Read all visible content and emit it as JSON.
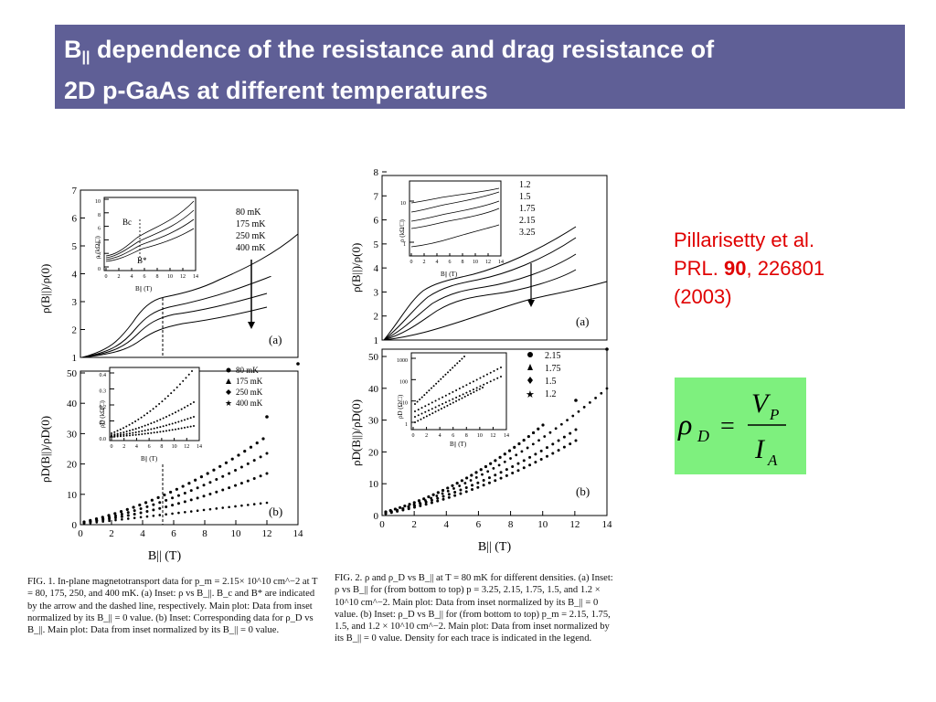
{
  "slide": {
    "title_line1_prefix": "B",
    "title_sub": "||",
    "title_line1_rest": " dependence of the resistance and drag resistance of",
    "title_line2": "2D p-GaAs at different temperatures"
  },
  "citation": {
    "authors": "Pillarisetty et al.",
    "journal": "PRL.",
    "volume": "90",
    "rest": ", 226801",
    "year": "(2003)"
  },
  "equation": {
    "lhs": "ρ",
    "lhs_sub": "D",
    "eq": "=",
    "num": "V",
    "num_sub": "P",
    "den": "I",
    "den_sub": "A"
  },
  "fig1": {
    "caption": {
      "label": "FIG. 1.",
      "text": "In-plane magnetotransport data for p_m = 2.15× 10^10 cm^−2 at T = 80, 175, 250, and 400 mK. (a) Inset: ρ vs B_||. B_c and B* are indicated by the arrow and the dashed line, respectively. Main plot: Data from inset normalized by its B_|| = 0 value. (b) Inset: Corresponding data for ρ_D vs B_||. Main plot: Data from inset normalized by its B_|| = 0 value."
    },
    "xlabel": "B|| (T)",
    "panel_a": {
      "ylabel": "ρ(B||)/ρ(0)",
      "tag": "(a)",
      "yticks": [
        "1",
        "2",
        "3",
        "4",
        "5",
        "6",
        "7"
      ],
      "legend": [
        "80 mK",
        "175 mK",
        "250 mK",
        "400 mK"
      ],
      "inset": {
        "ylabel": "ρ (kΩ/□)",
        "xlabel": "B|| (T)",
        "yticks": [
          "0",
          "2",
          "4",
          "6",
          "8",
          "10"
        ],
        "xticks": [
          "0",
          "2",
          "4",
          "6",
          "8",
          "10",
          "12",
          "14"
        ],
        "bc_label": "Bc",
        "bstar_label": "B*"
      }
    },
    "panel_b": {
      "ylabel": "ρD(B||)/ρD(0)",
      "tag": "(b)",
      "yticks": [
        "0",
        "10",
        "20",
        "30",
        "40",
        "50"
      ],
      "legend": [
        "80 mK",
        "175 mK",
        "250 mK",
        "400 mK"
      ],
      "inset": {
        "ylabel": "ρD (kΩ/□)",
        "xlabel": "B|| (T)",
        "yticks": [
          "0.0",
          "0.1",
          "0.2",
          "0.3",
          "0.4"
        ],
        "xticks": [
          "0",
          "2",
          "4",
          "6",
          "8",
          "10",
          "12",
          "14"
        ]
      }
    },
    "xticks": [
      "0",
      "2",
      "4",
      "6",
      "8",
      "10",
      "12",
      "14"
    ]
  },
  "fig2": {
    "caption": {
      "label": "FIG. 2.",
      "text": "ρ and ρ_D vs B_|| at T = 80 mK for different densities. (a) Inset: ρ vs B_|| for (from bottom to top) p = 3.25, 2.15, 1.75, 1.5, and 1.2 × 10^10 cm^−2. Main plot: Data from inset normalized by its B_|| = 0 value. (b) Inset: ρ_D vs B_|| for (from bottom to top) p_m = 2.15, 1.75, 1.5, and 1.2 × 10^10 cm^−2. Main plot: Data from inset normalized by its B_|| = 0 value. Density for each trace is indicated in the legend."
    },
    "xlabel": "B|| (T)",
    "panel_a": {
      "ylabel": "ρ(B||)/ρ(0)",
      "tag": "(a)",
      "yticks": [
        "1",
        "2",
        "3",
        "4",
        "5",
        "6",
        "7",
        "8"
      ],
      "legend": [
        "1.2",
        "1.5",
        "1.75",
        "2.15",
        "3.25"
      ],
      "inset": {
        "ylabel": "ρ (kΩ/□)",
        "xlabel": "B|| (T)",
        "yticks": [
          "1",
          "10"
        ],
        "xticks": [
          "0",
          "2",
          "4",
          "6",
          "8",
          "10",
          "12",
          "14"
        ]
      }
    },
    "panel_b": {
      "ylabel": "ρD(B||)/ρD(0)",
      "tag": "(b)",
      "yticks": [
        "0",
        "10",
        "20",
        "30",
        "40",
        "50"
      ],
      "legend": [
        "2.15",
        "1.75",
        "1.5",
        "1.2"
      ],
      "inset": {
        "ylabel": "ρD (Ω/□)",
        "xlabel": "B|| (T)",
        "yticks": [
          "1",
          "10",
          "100",
          "1000"
        ],
        "xticks": [
          "0",
          "2",
          "4",
          "6",
          "8",
          "10",
          "12",
          "14"
        ]
      }
    },
    "xticks": [
      "0",
      "2",
      "4",
      "6",
      "8",
      "10",
      "12",
      "14"
    ]
  }
}
